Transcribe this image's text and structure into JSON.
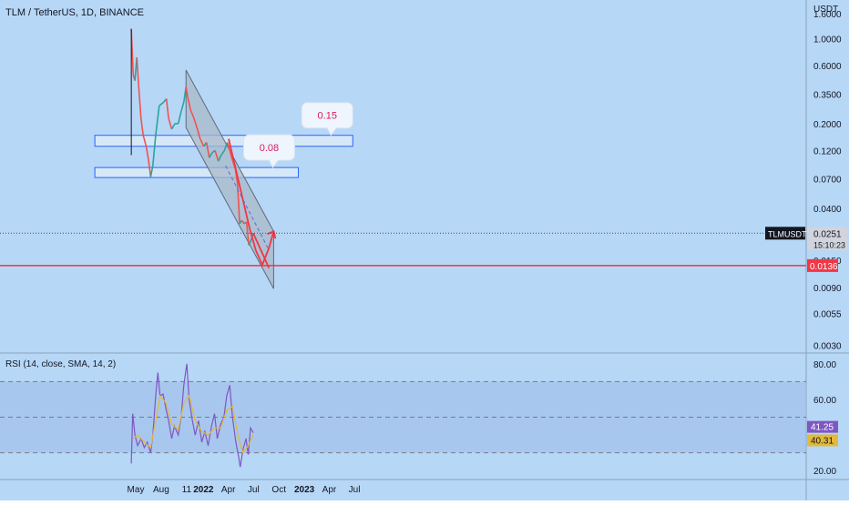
{
  "chart_data": [
    {
      "type": "candlestick",
      "title": "TLM / TetherUS, 1D, BINANCE",
      "yscale": "log",
      "ylim": [
        0.0026,
        1.9
      ],
      "y_unit_label": "USDT",
      "y_ticks": [
        "1.6000",
        "1.0000",
        "0.6000",
        "0.3500",
        "0.2000",
        "0.1200",
        "0.0700",
        "0.0400",
        "0.0150",
        "0.0090",
        "0.0055",
        "0.0030"
      ],
      "x_ticks": [
        "May",
        "Aug",
        "11",
        "2022",
        "Apr",
        "Jul",
        "Oct",
        "2023",
        "Apr",
        "Jul"
      ],
      "x_ticks_note": "axis labels in calendar order, 2021-05 to 2023-07",
      "price_path": [
        [
          "2021-04-15",
          1.2
        ],
        [
          "2021-04-22",
          0.5
        ],
        [
          "2021-04-28",
          0.45
        ],
        [
          "2021-05-05",
          0.7
        ],
        [
          "2021-05-12",
          0.4
        ],
        [
          "2021-05-20",
          0.22
        ],
        [
          "2021-05-28",
          0.16
        ],
        [
          "2021-06-08",
          0.13
        ],
        [
          "2021-06-16",
          0.1
        ],
        [
          "2021-06-24",
          0.073
        ],
        [
          "2021-07-02",
          0.09
        ],
        [
          "2021-07-12",
          0.16
        ],
        [
          "2021-07-25",
          0.28
        ],
        [
          "2021-08-10",
          0.3
        ],
        [
          "2021-08-20",
          0.32
        ],
        [
          "2021-08-28",
          0.22
        ],
        [
          "2021-09-08",
          0.18
        ],
        [
          "2021-09-20",
          0.2
        ],
        [
          "2021-10-02",
          0.2
        ],
        [
          "2021-10-12",
          0.25
        ],
        [
          "2021-10-22",
          0.3
        ],
        [
          "2021-10-30",
          0.4
        ],
        [
          "2021-11-05",
          0.33
        ],
        [
          "2021-11-15",
          0.26
        ],
        [
          "2021-11-28",
          0.22
        ],
        [
          "2021-12-10",
          0.18
        ],
        [
          "2021-12-20",
          0.15
        ],
        [
          "2022-01-02",
          0.13
        ],
        [
          "2022-01-12",
          0.14
        ],
        [
          "2022-01-22",
          0.105
        ],
        [
          "2022-02-01",
          0.115
        ],
        [
          "2022-02-12",
          0.12
        ],
        [
          "2022-02-24",
          0.098
        ],
        [
          "2022-03-06",
          0.11
        ],
        [
          "2022-03-18",
          0.12
        ],
        [
          "2022-03-28",
          0.14
        ],
        [
          "2022-04-06",
          0.12
        ],
        [
          "2022-04-16",
          0.1
        ],
        [
          "2022-04-26",
          0.085
        ],
        [
          "2022-05-04",
          0.065
        ],
        [
          "2022-05-12",
          0.03
        ],
        [
          "2022-05-20",
          0.032
        ],
        [
          "2022-05-28",
          0.03
        ],
        [
          "2022-06-06",
          0.031
        ],
        [
          "2022-06-14",
          0.02
        ],
        [
          "2022-06-22",
          0.022
        ],
        [
          "2022-06-30",
          0.0251
        ]
      ],
      "last_price_label": {
        "symbol": "TLMUSDT",
        "value": "0.0251",
        "countdown": "15:10:23"
      },
      "horizontal_line": {
        "value": 0.0136,
        "label": "0.0136",
        "color": "#f23645"
      },
      "zones": [
        {
          "label": "0.15",
          "low": 0.13,
          "high": 0.16,
          "x_start": "2021-04-15",
          "x_end": "2023-06-25"
        },
        {
          "label": "0.08",
          "low": 0.072,
          "high": 0.087,
          "x_start": "2021-04-15",
          "x_end": "2022-12-10"
        }
      ],
      "channel": {
        "upper": [
          [
            "2021-10-30",
            0.55
          ],
          [
            "2022-09-12",
            0.026
          ]
        ],
        "lower": [
          [
            "2021-10-30",
            0.185
          ],
          [
            "2022-09-12",
            0.0088
          ]
        ]
      },
      "projection_path": [
        [
          "2022-04-02",
          0.15
        ],
        [
          "2022-06-18",
          0.027
        ],
        [
          "2022-07-10",
          0.018
        ],
        [
          "2022-08-02",
          0.0138
        ],
        [
          "2022-08-26",
          0.019
        ],
        [
          "2022-09-12",
          0.026
        ]
      ],
      "projection_alt": [
        [
          "2022-06-30",
          0.0251
        ],
        [
          "2022-08-26",
          0.013
        ]
      ],
      "projection_dashed": [
        [
          "2022-03-22",
          0.09
        ],
        [
          "2022-08-22",
          0.019
        ]
      ],
      "colors": {
        "up": "#26a69a",
        "down": "#ef5350",
        "zone_fill": "#d6e8f7",
        "zone_border": "#2962ff",
        "channel_fill": "#a9b9ca",
        "projection": "#f23645"
      }
    },
    {
      "type": "line",
      "title": "RSI (14, close, SMA, 14, 2)",
      "ylim": [
        15,
        85
      ],
      "y_ticks": [
        "80.00",
        "60.00",
        "20.00"
      ],
      "band": [
        30,
        70
      ],
      "midline": 50,
      "series": [
        {
          "name": "RSI",
          "color": "#7e57c2",
          "last": "41.25",
          "points": [
            [
              "2021-04-15",
              24
            ],
            [
              "2021-04-20",
              52
            ],
            [
              "2021-04-28",
              40
            ],
            [
              "2021-05-08",
              34
            ],
            [
              "2021-05-20",
              38
            ],
            [
              "2021-06-01",
              33
            ],
            [
              "2021-06-12",
              36
            ],
            [
              "2021-06-24",
              30
            ],
            [
              "2021-07-02",
              40
            ],
            [
              "2021-07-12",
              62
            ],
            [
              "2021-07-20",
              75
            ],
            [
              "2021-07-28",
              62
            ],
            [
              "2021-08-08",
              63
            ],
            [
              "2021-08-18",
              55
            ],
            [
              "2021-08-28",
              48
            ],
            [
              "2021-09-08",
              38
            ],
            [
              "2021-09-18",
              45
            ],
            [
              "2021-10-02",
              40
            ],
            [
              "2021-10-12",
              50
            ],
            [
              "2021-10-22",
              68
            ],
            [
              "2021-11-02",
              80
            ],
            [
              "2021-11-10",
              60
            ],
            [
              "2021-11-22",
              48
            ],
            [
              "2021-12-02",
              40
            ],
            [
              "2021-12-14",
              48
            ],
            [
              "2021-12-26",
              36
            ],
            [
              "2022-01-06",
              42
            ],
            [
              "2022-01-18",
              34
            ],
            [
              "2022-01-30",
              45
            ],
            [
              "2022-02-10",
              52
            ],
            [
              "2022-02-20",
              38
            ],
            [
              "2022-03-04",
              46
            ],
            [
              "2022-03-16",
              50
            ],
            [
              "2022-03-26",
              62
            ],
            [
              "2022-04-06",
              68
            ],
            [
              "2022-04-16",
              50
            ],
            [
              "2022-04-28",
              36
            ],
            [
              "2022-05-08",
              28
            ],
            [
              "2022-05-14",
              22
            ],
            [
              "2022-05-24",
              32
            ],
            [
              "2022-06-04",
              38
            ],
            [
              "2022-06-12",
              29
            ],
            [
              "2022-06-20",
              44
            ],
            [
              "2022-06-30",
              41.25
            ]
          ]
        },
        {
          "name": "SMA",
          "color": "#e3b93a",
          "last": "40.31",
          "points": [
            [
              "2021-04-20",
              38
            ],
            [
              "2021-05-08",
              40
            ],
            [
              "2021-06-01",
              36
            ],
            [
              "2021-06-24",
              33
            ],
            [
              "2021-07-12",
              48
            ],
            [
              "2021-07-28",
              62
            ],
            [
              "2021-08-18",
              58
            ],
            [
              "2021-09-08",
              46
            ],
            [
              "2021-10-02",
              43
            ],
            [
              "2021-10-22",
              58
            ],
            [
              "2021-11-10",
              62
            ],
            [
              "2021-12-02",
              48
            ],
            [
              "2021-12-26",
              42
            ],
            [
              "2022-01-18",
              40
            ],
            [
              "2022-02-10",
              44
            ],
            [
              "2022-03-04",
              44
            ],
            [
              "2022-03-26",
              54
            ],
            [
              "2022-04-16",
              56
            ],
            [
              "2022-05-08",
              38
            ],
            [
              "2022-05-24",
              30
            ],
            [
              "2022-06-12",
              34
            ],
            [
              "2022-06-30",
              40.31
            ]
          ]
        }
      ]
    }
  ]
}
